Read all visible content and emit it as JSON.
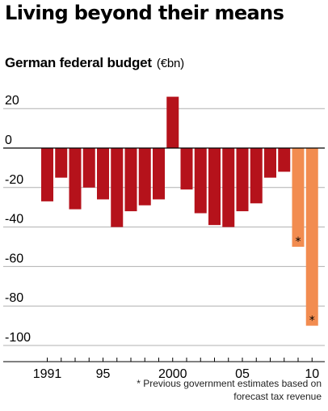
{
  "title": "Living beyond their means",
  "subtitle": "German federal budget",
  "unit": "(€bn)",
  "footnote": "* Previous government estimates based on\nforecast tax revenue",
  "colors": {
    "actual": "#b5121b",
    "estimate": "#f28c50",
    "gridline": "#b0b0b0",
    "axis": "#000000"
  },
  "chart_data": {
    "type": "bar",
    "title": "",
    "xlabel": "",
    "ylabel": "",
    "ylim": [
      -100,
      25
    ],
    "yticks": [
      20,
      0,
      -20,
      -40,
      -60,
      -80,
      -100
    ],
    "xtick_labels": [
      {
        "year": 1991,
        "label": "1991"
      },
      {
        "year": 1995,
        "label": "95"
      },
      {
        "year": 2000,
        "label": "2000"
      },
      {
        "year": 2005,
        "label": "05"
      },
      {
        "year": 2010,
        "label": "10"
      }
    ],
    "categories": [
      1991,
      1992,
      1993,
      1994,
      1995,
      1996,
      1997,
      1998,
      1999,
      2000,
      2001,
      2002,
      2003,
      2004,
      2005,
      2006,
      2007,
      2008,
      2009,
      2010
    ],
    "series": [
      {
        "values": [
          -27,
          -15,
          -31,
          -20,
          -26,
          -40,
          -32,
          -29,
          -26,
          26,
          -21,
          -33,
          -39,
          -40,
          -32,
          -28,
          -15,
          -12,
          -50,
          -90
        ],
        "estimated": [
          false,
          false,
          false,
          false,
          false,
          false,
          false,
          false,
          false,
          false,
          false,
          false,
          false,
          false,
          false,
          false,
          false,
          false,
          true,
          true
        ]
      }
    ],
    "marker_symbol": "*",
    "grid": true
  }
}
